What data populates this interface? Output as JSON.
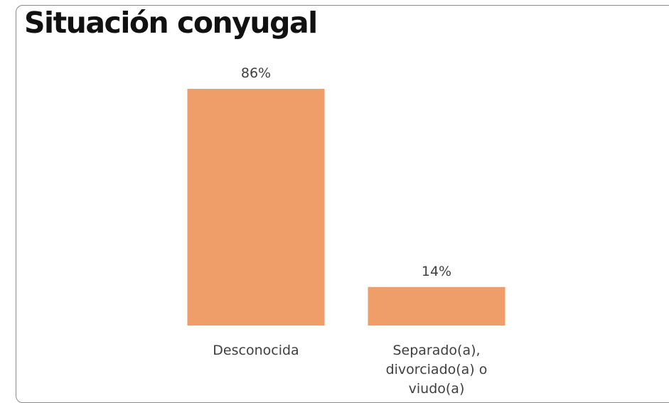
{
  "chart_data": {
    "type": "bar",
    "title": "Situación conyugal",
    "categories": [
      [
        "Desconocida"
      ],
      [
        "Separado(a),",
        "divorciado(a) o",
        "viudo(a)"
      ]
    ],
    "values": [
      86,
      14
    ],
    "data_labels": [
      "86%",
      "14%"
    ],
    "ylim": [
      0,
      86
    ],
    "bar_color": "#EF9E69",
    "grid": false,
    "legend": false
  }
}
